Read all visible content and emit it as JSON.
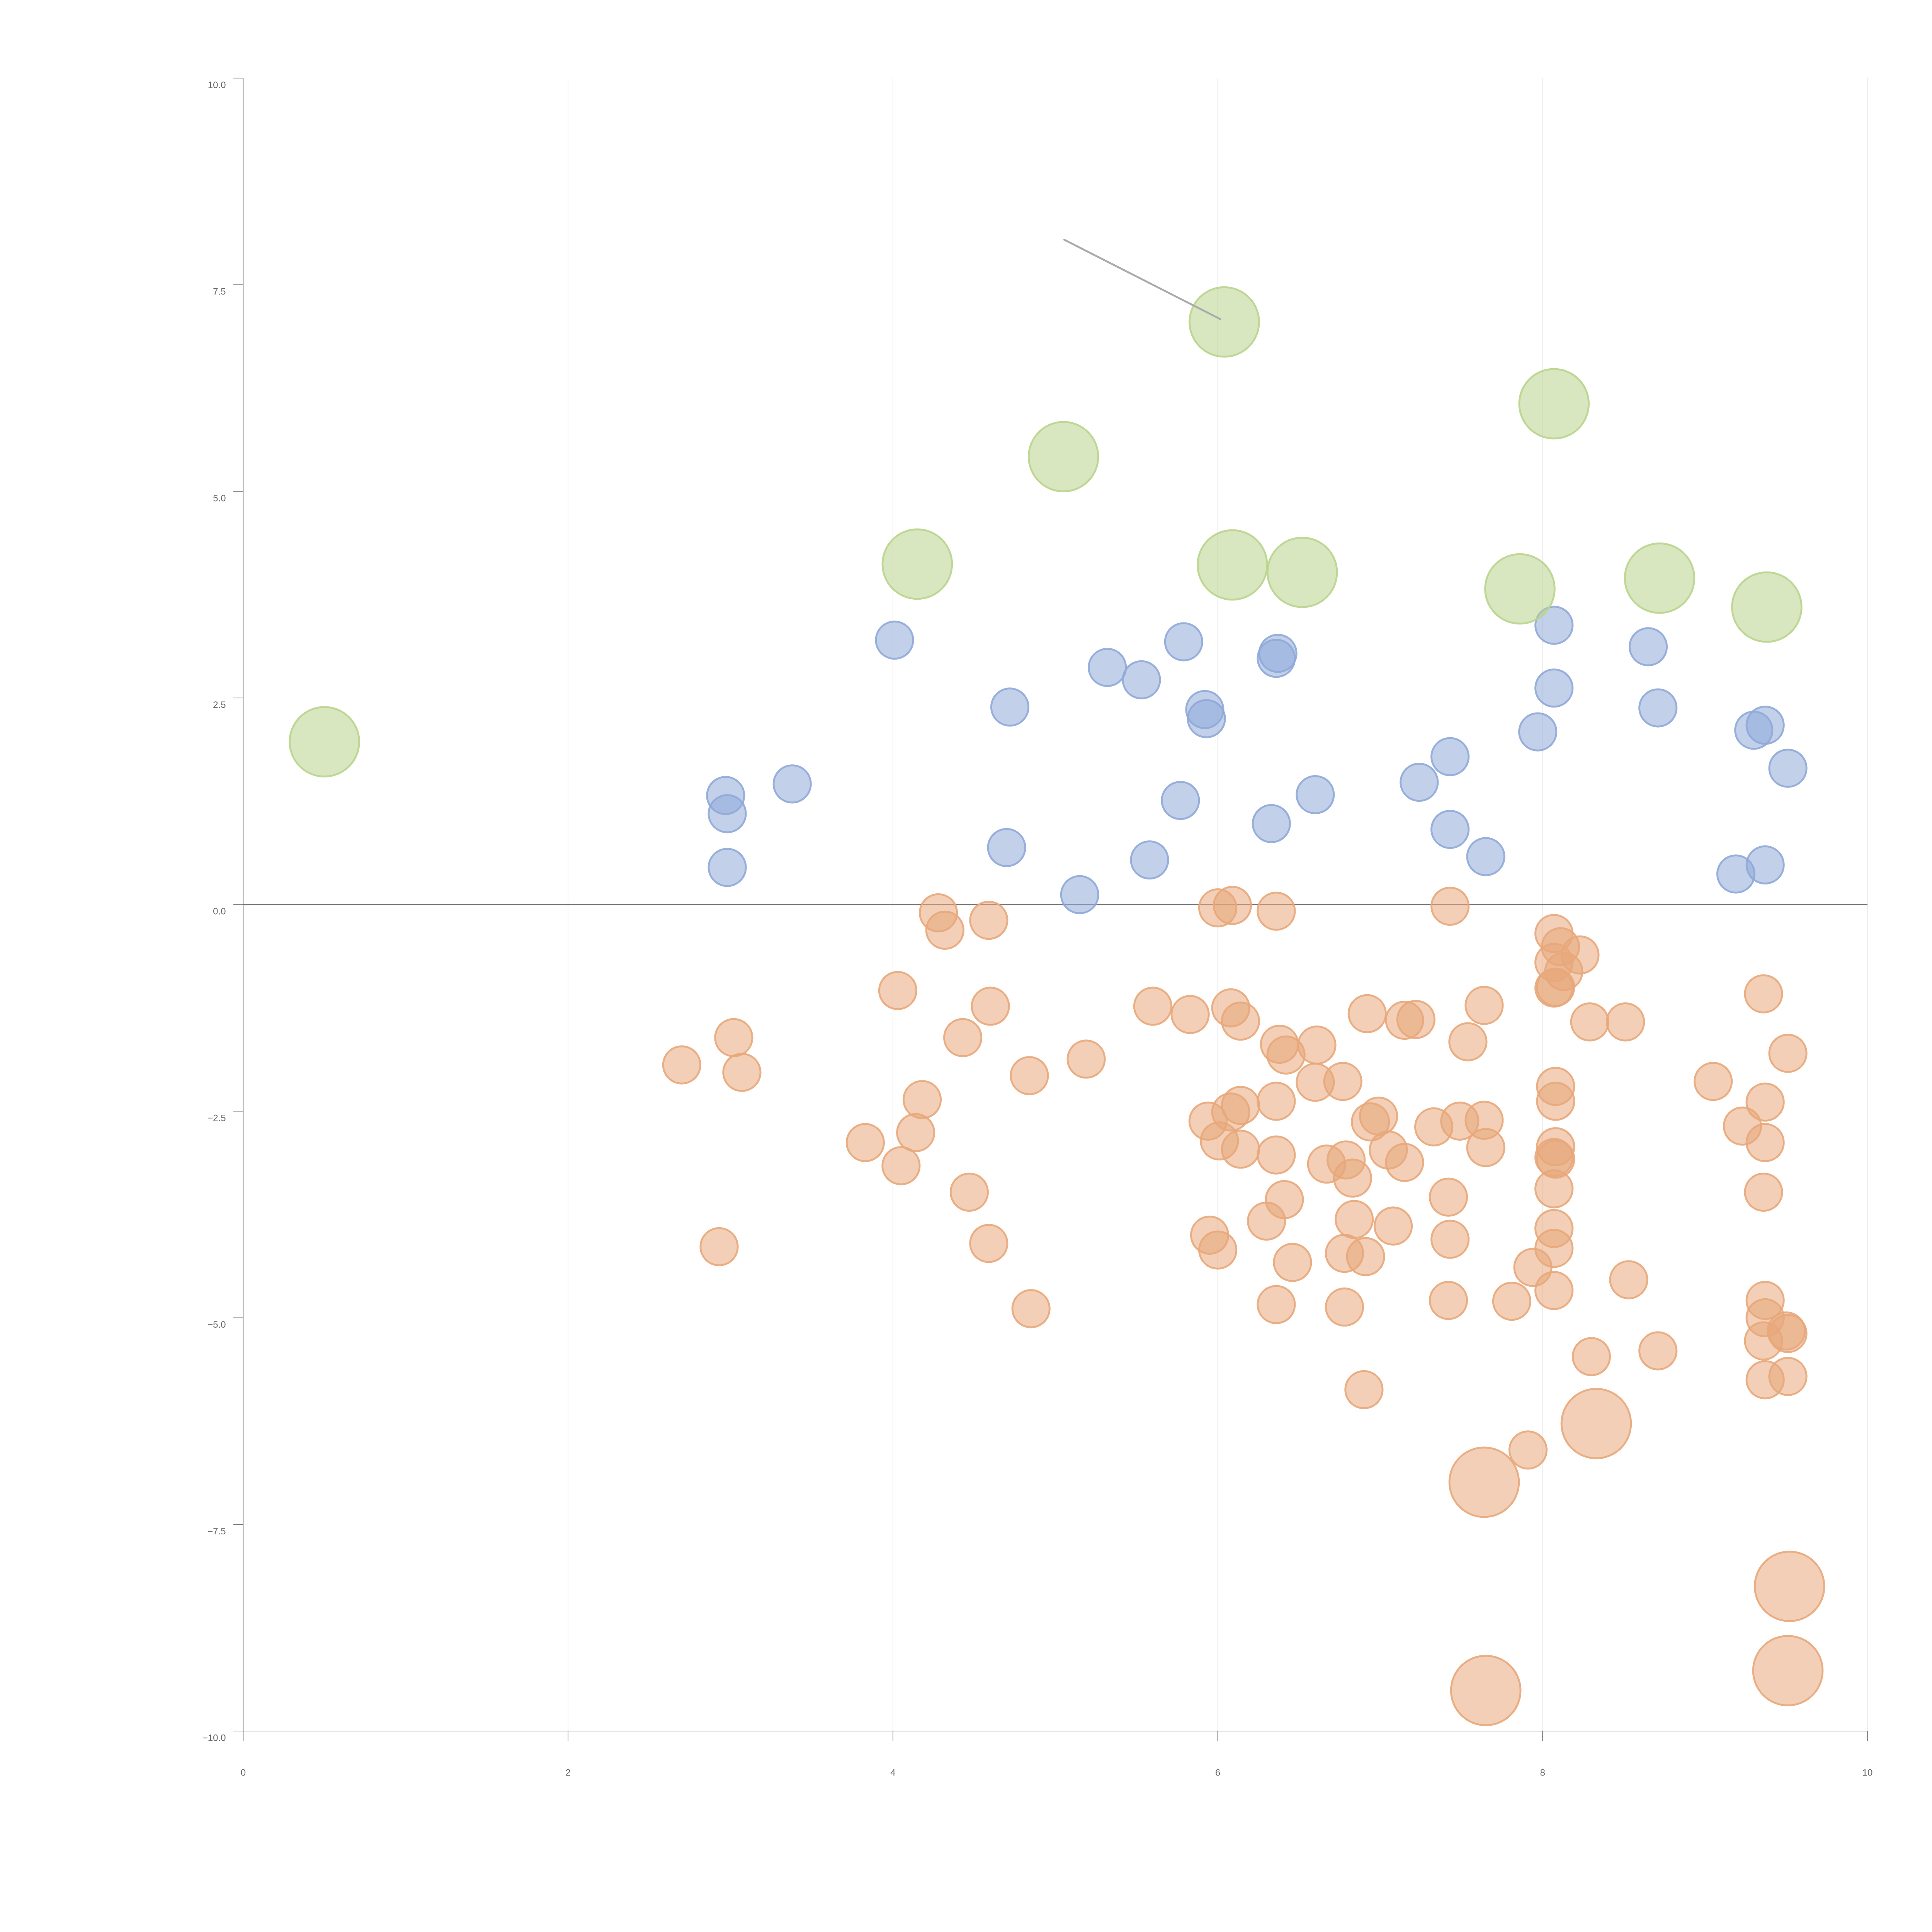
{
  "chart_data": {
    "type": "scatter",
    "title": "",
    "xlabel": "",
    "ylabel": "",
    "xlim": [
      0,
      10
    ],
    "ylim": [
      -10,
      10
    ],
    "grid": "vertical",
    "legend": "none",
    "x_ticks": [
      "0",
      "2",
      "4",
      "6",
      "8",
      "10"
    ],
    "y_ticks": [
      "10.0",
      "7.5",
      "5.0",
      "2.5",
      "0.0",
      "−2.5",
      "−5.0",
      "−7.5",
      "−10.0"
    ],
    "reference_line_y": 0,
    "colors": {
      "positive": "#8FA9D8",
      "negative": "#E8A77A",
      "large": "#B9D48D"
    },
    "series": [
      {
        "color_key": "positive",
        "points": [
          {
            "x": 2.97,
            "y": 1.32
          },
          {
            "x": 2.98,
            "y": 1.1
          },
          {
            "x": 2.98,
            "y": 0.45
          },
          {
            "x": 3.38,
            "y": 1.46
          },
          {
            "x": 4.01,
            "y": 3.2
          },
          {
            "x": 4.72,
            "y": 2.39
          },
          {
            "x": 4.7,
            "y": 0.69
          },
          {
            "x": 5.15,
            "y": 0.12
          },
          {
            "x": 5.32,
            "y": 2.87
          },
          {
            "x": 5.53,
            "y": 2.72
          },
          {
            "x": 5.58,
            "y": 0.54
          },
          {
            "x": 5.77,
            "y": 1.26
          },
          {
            "x": 5.79,
            "y": 3.18
          },
          {
            "x": 5.92,
            "y": 2.36
          },
          {
            "x": 5.93,
            "y": 2.25
          },
          {
            "x": 6.33,
            "y": 0.98
          },
          {
            "x": 6.36,
            "y": 2.98
          },
          {
            "x": 6.37,
            "y": 3.04
          },
          {
            "x": 6.6,
            "y": 1.33
          },
          {
            "x": 7.24,
            "y": 1.48
          },
          {
            "x": 7.43,
            "y": 1.79
          },
          {
            "x": 7.43,
            "y": 0.91
          },
          {
            "x": 7.65,
            "y": 0.58
          },
          {
            "x": 7.97,
            "y": 2.09
          },
          {
            "x": 8.07,
            "y": 3.38
          },
          {
            "x": 8.07,
            "y": 2.62
          },
          {
            "x": 8.65,
            "y": 3.12
          },
          {
            "x": 8.71,
            "y": 2.38
          },
          {
            "x": 9.19,
            "y": 0.37
          },
          {
            "x": 9.3,
            "y": 2.11
          },
          {
            "x": 9.37,
            "y": 2.17
          },
          {
            "x": 9.37,
            "y": 0.48
          },
          {
            "x": 9.51,
            "y": 1.65
          }
        ]
      },
      {
        "color_key": "negative",
        "points": [
          {
            "x": 2.7,
            "y": -1.94
          },
          {
            "x": 2.93,
            "y": -4.14
          },
          {
            "x": 3.02,
            "y": -1.61
          },
          {
            "x": 3.07,
            "y": -2.03
          },
          {
            "x": 3.83,
            "y": -2.88
          },
          {
            "x": 4.03,
            "y": -1.04
          },
          {
            "x": 4.05,
            "y": -3.16
          },
          {
            "x": 4.14,
            "y": -2.76
          },
          {
            "x": 4.18,
            "y": -2.36
          },
          {
            "x": 4.28,
            "y": -0.1
          },
          {
            "x": 4.32,
            "y": -0.31
          },
          {
            "x": 4.43,
            "y": -1.61
          },
          {
            "x": 4.47,
            "y": -3.48
          },
          {
            "x": 4.59,
            "y": -0.19
          },
          {
            "x": 4.6,
            "y": -1.23
          },
          {
            "x": 4.59,
            "y": -4.1
          },
          {
            "x": 4.84,
            "y": -2.07
          },
          {
            "x": 4.85,
            "y": -4.89
          },
          {
            "x": 5.19,
            "y": -1.87
          },
          {
            "x": 5.6,
            "y": -1.23
          },
          {
            "x": 5.83,
            "y": -1.33
          },
          {
            "x": 5.94,
            "y": -2.62
          },
          {
            "x": 5.95,
            "y": -4.0
          },
          {
            "x": 6.0,
            "y": -0.04
          },
          {
            "x": 6.01,
            "y": -2.86
          },
          {
            "x": 6.0,
            "y": -4.18
          },
          {
            "x": 6.09,
            "y": -0.01
          },
          {
            "x": 6.08,
            "y": -1.25
          },
          {
            "x": 6.08,
            "y": -2.51
          },
          {
            "x": 6.14,
            "y": -1.41
          },
          {
            "x": 6.14,
            "y": -2.43
          },
          {
            "x": 6.14,
            "y": -2.96
          },
          {
            "x": 6.3,
            "y": -3.83
          },
          {
            "x": 6.36,
            "y": -0.08
          },
          {
            "x": 6.36,
            "y": -2.38
          },
          {
            "x": 6.36,
            "y": -3.03
          },
          {
            "x": 6.36,
            "y": -4.84
          },
          {
            "x": 6.38,
            "y": -1.69
          },
          {
            "x": 6.42,
            "y": -1.82
          },
          {
            "x": 6.41,
            "y": -3.57
          },
          {
            "x": 6.46,
            "y": -4.33
          },
          {
            "x": 6.61,
            "y": -1.7
          },
          {
            "x": 6.6,
            "y": -2.15
          },
          {
            "x": 6.67,
            "y": -3.14
          },
          {
            "x": 6.77,
            "y": -2.14
          },
          {
            "x": 6.79,
            "y": -3.09
          },
          {
            "x": 6.78,
            "y": -4.22
          },
          {
            "x": 6.78,
            "y": -4.87
          },
          {
            "x": 6.83,
            "y": -3.31
          },
          {
            "x": 6.84,
            "y": -3.81
          },
          {
            "x": 6.9,
            "y": -5.87
          },
          {
            "x": 6.92,
            "y": -1.32
          },
          {
            "x": 6.94,
            "y": -2.63
          },
          {
            "x": 6.91,
            "y": -4.26
          },
          {
            "x": 6.99,
            "y": -2.56
          },
          {
            "x": 7.05,
            "y": -2.97
          },
          {
            "x": 7.08,
            "y": -3.89
          },
          {
            "x": 7.15,
            "y": -1.4
          },
          {
            "x": 7.15,
            "y": -3.12
          },
          {
            "x": 7.22,
            "y": -1.39
          },
          {
            "x": 7.33,
            "y": -2.69
          },
          {
            "x": 7.43,
            "y": -0.02
          },
          {
            "x": 7.42,
            "y": -3.54
          },
          {
            "x": 7.43,
            "y": -4.05
          },
          {
            "x": 7.42,
            "y": -4.79
          },
          {
            "x": 7.49,
            "y": -2.62
          },
          {
            "x": 7.54,
            "y": -1.66
          },
          {
            "x": 7.64,
            "y": -1.22
          },
          {
            "x": 7.64,
            "y": -2.61
          },
          {
            "x": 7.65,
            "y": -2.94
          },
          {
            "x": 7.81,
            "y": -4.8
          },
          {
            "x": 7.91,
            "y": -6.6
          },
          {
            "x": 7.94,
            "y": -4.39
          },
          {
            "x": 8.07,
            "y": -0.35
          },
          {
            "x": 8.07,
            "y": -0.7
          },
          {
            "x": 8.07,
            "y": -1.01
          },
          {
            "x": 8.08,
            "y": -2.2
          },
          {
            "x": 8.08,
            "y": -2.38
          },
          {
            "x": 8.08,
            "y": -2.93
          },
          {
            "x": 8.07,
            "y": -3.06
          },
          {
            "x": 8.07,
            "y": -3.44
          },
          {
            "x": 8.07,
            "y": -3.92
          },
          {
            "x": 8.07,
            "y": -4.16
          },
          {
            "x": 8.07,
            "y": -4.67
          },
          {
            "x": 8.08,
            "y": -1.0
          },
          {
            "x": 8.08,
            "y": -3.08
          },
          {
            "x": 8.11,
            "y": -0.51
          },
          {
            "x": 8.13,
            "y": -0.81
          },
          {
            "x": 8.23,
            "y": -0.61
          },
          {
            "x": 8.29,
            "y": -1.42
          },
          {
            "x": 8.3,
            "y": -5.47
          },
          {
            "x": 8.51,
            "y": -1.42
          },
          {
            "x": 8.53,
            "y": -4.54
          },
          {
            "x": 8.71,
            "y": -5.4
          },
          {
            "x": 9.05,
            "y": -2.14
          },
          {
            "x": 9.23,
            "y": -2.68
          },
          {
            "x": 9.36,
            "y": -1.08
          },
          {
            "x": 9.37,
            "y": -2.39
          },
          {
            "x": 9.37,
            "y": -2.88
          },
          {
            "x": 9.36,
            "y": -3.48
          },
          {
            "x": 9.37,
            "y": -4.79
          },
          {
            "x": 9.37,
            "y": -5.0
          },
          {
            "x": 9.36,
            "y": -5.28
          },
          {
            "x": 9.37,
            "y": -5.75
          },
          {
            "x": 9.51,
            "y": -1.8
          },
          {
            "x": 9.5,
            "y": -5.16
          },
          {
            "x": 9.51,
            "y": -5.19
          },
          {
            "x": 9.51,
            "y": -5.71
          }
        ]
      },
      {
        "color_key": "large",
        "points": [
          {
            "x": 0.5,
            "y": 1.97
          },
          {
            "x": 4.15,
            "y": 4.12
          },
          {
            "x": 5.05,
            "y": 5.42
          },
          {
            "x": 6.04,
            "y": 7.05
          },
          {
            "x": 6.09,
            "y": 4.11
          },
          {
            "x": 6.52,
            "y": 4.02
          },
          {
            "x": 7.86,
            "y": 3.82
          },
          {
            "x": 8.07,
            "y": 6.06
          },
          {
            "x": 8.72,
            "y": 3.95
          },
          {
            "x": 9.38,
            "y": 3.6
          }
        ]
      },
      {
        "color_key": "negative",
        "size": "large",
        "points": [
          {
            "x": 8.33,
            "y": -6.28
          },
          {
            "x": 7.64,
            "y": -6.99
          },
          {
            "x": 9.52,
            "y": -8.25
          },
          {
            "x": 9.51,
            "y": -9.27
          },
          {
            "x": 7.65,
            "y": -9.51
          }
        ]
      }
    ]
  }
}
